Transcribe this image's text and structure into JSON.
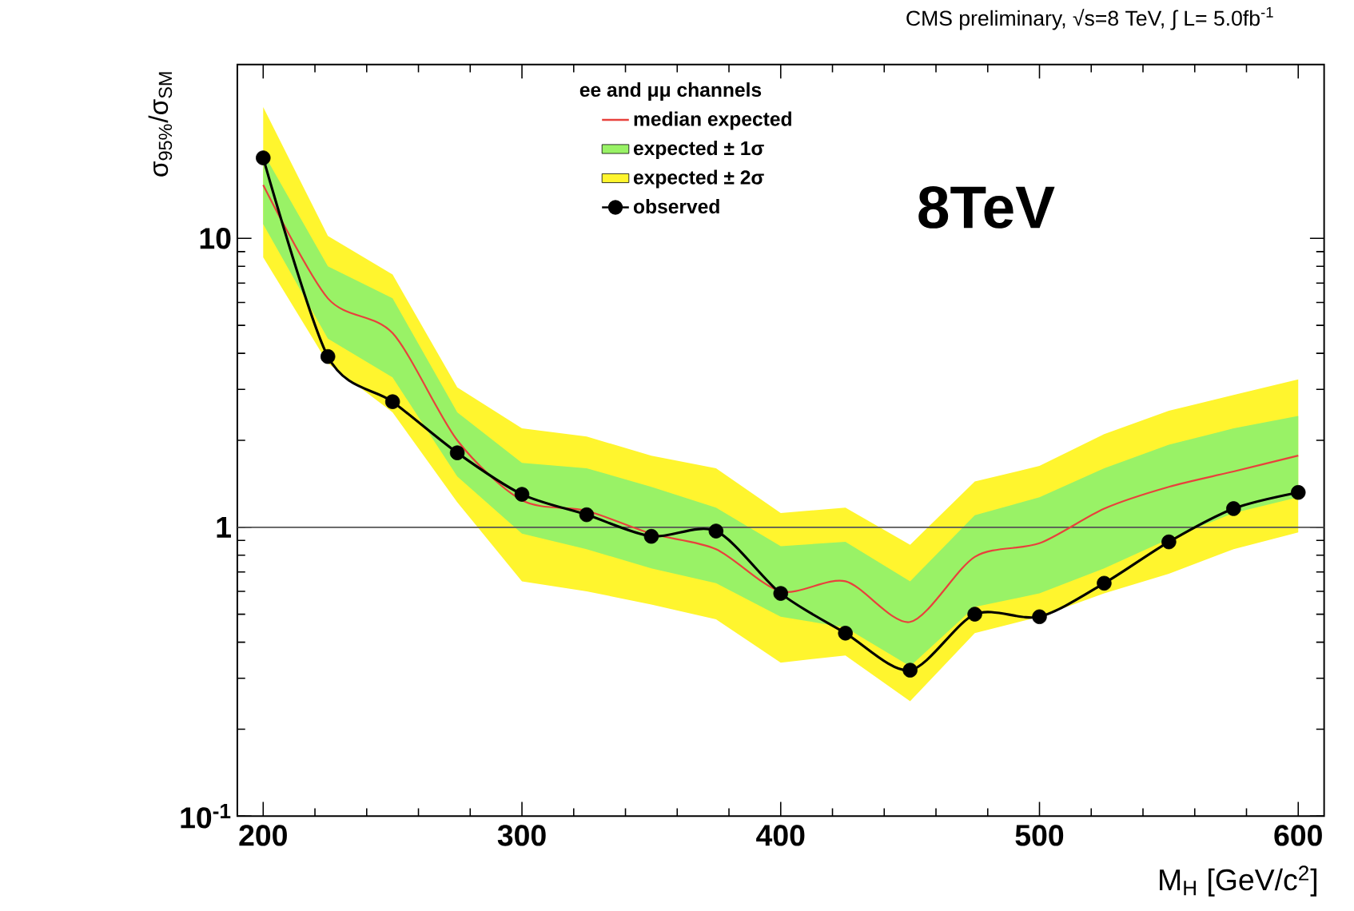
{
  "chart_data": {
    "type": "line",
    "title": "CMS preliminary, √s=8 TeV, ∫ L=   5.0fb$^{-1}$",
    "xlabel": "M$_{H}$ [GeV/c$^{2}$]",
    "ylabel": "σ$_{95%}$/σ$_{SM}$",
    "legend_title": "ee and μμ channels",
    "annotations": [
      "8TeV"
    ],
    "x": [
      200,
      225,
      250,
      275,
      300,
      325,
      350,
      375,
      400,
      425,
      450,
      475,
      500,
      525,
      550,
      575,
      600
    ],
    "series": [
      {
        "name": "median expected",
        "color": "#e8413c",
        "values": [
          15.3,
          6.2,
          4.7,
          2.0,
          1.24,
          1.14,
          0.95,
          0.84,
          0.6,
          0.65,
          0.47,
          0.79,
          0.88,
          1.16,
          1.38,
          1.56,
          1.77
        ]
      },
      {
        "name": "expected ± 1σ",
        "color": "#99f266",
        "values": [
          null,
          null,
          null,
          null,
          null,
          null,
          null,
          null,
          null,
          null,
          null,
          null,
          null,
          null,
          null,
          null,
          null
        ],
        "lower": [
          11.2,
          4.5,
          3.3,
          1.5,
          0.95,
          0.84,
          0.72,
          0.64,
          0.49,
          0.45,
          0.33,
          0.53,
          0.59,
          0.72,
          0.91,
          1.12,
          1.27
        ],
        "upper": [
          19.8,
          8.0,
          6.2,
          2.5,
          1.67,
          1.6,
          1.38,
          1.17,
          0.86,
          0.89,
          0.65,
          1.1,
          1.27,
          1.6,
          1.93,
          2.2,
          2.43
        ]
      },
      {
        "name": "expected ± 2σ",
        "color": "#fff52e",
        "values": [
          null,
          null,
          null,
          null,
          null,
          null,
          null,
          null,
          null,
          null,
          null,
          null,
          null,
          null,
          null,
          null,
          null
        ],
        "lower": [
          8.6,
          3.7,
          2.5,
          1.22,
          0.65,
          0.6,
          0.54,
          0.48,
          0.34,
          0.36,
          0.25,
          0.43,
          0.49,
          0.59,
          0.69,
          0.84,
          0.96
        ],
        "upper": [
          28.5,
          10.2,
          7.5,
          3.05,
          2.2,
          2.06,
          1.77,
          1.6,
          1.12,
          1.17,
          0.87,
          1.44,
          1.63,
          2.1,
          2.53,
          2.87,
          3.25
        ]
      },
      {
        "name": "observed",
        "color": "#000000",
        "marker": "circle",
        "values": [
          19,
          3.9,
          2.72,
          1.81,
          1.3,
          1.105,
          0.93,
          0.97,
          0.59,
          0.43,
          0.32,
          0.5,
          0.49,
          0.64,
          0.89,
          1.16,
          1.32
        ]
      }
    ],
    "xlim": [
      190,
      610
    ],
    "ylim": [
      0.1,
      40
    ],
    "xticks": [
      200,
      300,
      400,
      500,
      600
    ],
    "yticks": [
      {
        "value": 0.1,
        "label": "10$^{-1}$"
      },
      1,
      10
    ],
    "log": "y",
    "grid": false,
    "legend": "top",
    "line_style": "solid",
    "ref_lines": [
      {
        "axis": "y",
        "value": 1,
        "color": "#555555"
      }
    ]
  }
}
